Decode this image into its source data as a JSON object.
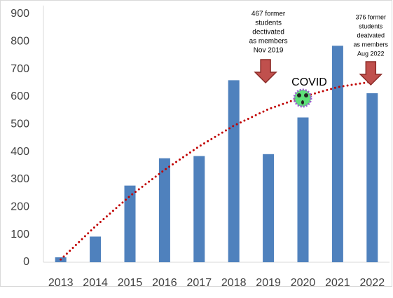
{
  "chart_data": {
    "type": "bar",
    "categories": [
      "2013",
      "2014",
      "2015",
      "2016",
      "2017",
      "2018",
      "2019",
      "2020",
      "2021",
      "2022"
    ],
    "values": [
      18,
      93,
      278,
      377,
      385,
      660,
      392,
      525,
      785,
      613
    ],
    "color": "#4f81bd",
    "ylim": [
      0,
      900
    ],
    "yticks": [
      0,
      100,
      200,
      300,
      400,
      500,
      600,
      700,
      800,
      900
    ],
    "grid": false,
    "trendline": {
      "values": [
        10,
        130,
        240,
        335,
        420,
        495,
        555,
        600,
        635,
        655
      ],
      "color": "#c00000",
      "style": "dotted"
    },
    "annotations": [
      {
        "lines": [
          "467 former",
          "students",
          "dectivated",
          "as members",
          "Nov 2019"
        ],
        "category": "2019"
      },
      {
        "lines": [
          "376 former",
          "students",
          "deatvated",
          "as members",
          "Aug 2022"
        ],
        "category": "2022"
      },
      {
        "lines": [
          "COVID"
        ],
        "category": "2020"
      }
    ]
  }
}
